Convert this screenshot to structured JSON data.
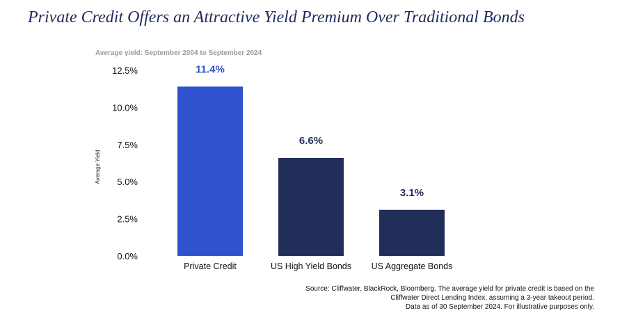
{
  "title": "Private Credit Offers an Attractive Yield Premium Over Traditional Bonds",
  "source_lines": [
    "Source: Cliffwater, BlackRock, Bloomberg. The average yield for private credit is based on the",
    "Cliffwater Direct Lending Index, assuming a 3-year takeout period.",
    "Data as of 30 September 2024. For illustrative purposes only."
  ],
  "chart_data": {
    "type": "bar",
    "subtitle": "Average yield: September 2004 to September 2024",
    "ylabel": "Average Yield",
    "xlabel": "",
    "ylim": [
      0,
      12.5
    ],
    "yticks": [
      0,
      2.5,
      5,
      7.5,
      10,
      12.5
    ],
    "ytick_labels": [
      "0.0%",
      "2.5%",
      "5.0%",
      "7.5%",
      "10.0%",
      "12.5%"
    ],
    "categories": [
      "Private Credit",
      "US High Yield Bonds",
      "US Aggregate Bonds"
    ],
    "values": [
      11.4,
      6.6,
      3.1
    ],
    "data_labels": [
      "11.4%",
      "6.6%",
      "3.1%"
    ],
    "colors": [
      "#3152cf",
      "#222e5a",
      "#222e5a"
    ],
    "label_colors": [
      "#3152cf",
      "#222e5a",
      "#222e5a"
    ],
    "grid": false,
    "legend": "none"
  }
}
